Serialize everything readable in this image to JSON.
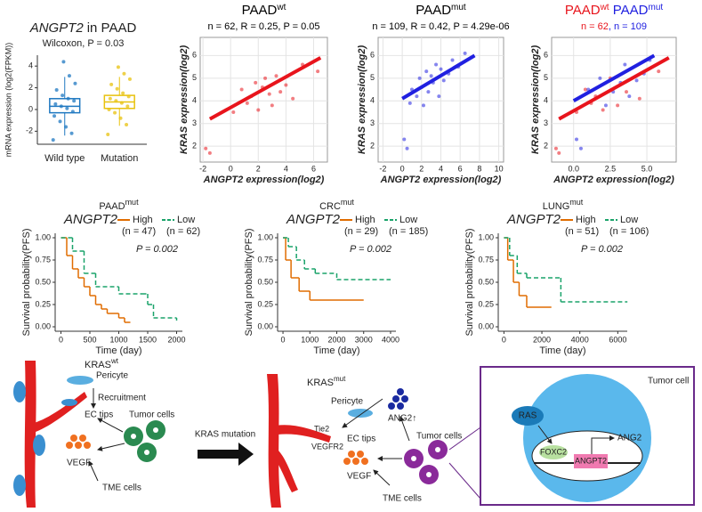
{
  "chart_data": [
    {
      "type": "box",
      "title": "ANGPT2",
      "title_suffix": "in PAAD",
      "subtitle": "Wilcoxon, P = 0.03",
      "y_label": "mRNA expression (log2(FPKM))",
      "categories": [
        "Wild type",
        "Mutation"
      ],
      "ylim": [
        -3.2,
        5
      ],
      "yticks": [
        -2,
        0,
        2,
        4
      ],
      "boxes": [
        {
          "color": "#1f78c1",
          "min": -2.4,
          "q1": -0.3,
          "median": 0.3,
          "q3": 1.0,
          "max": 3.0,
          "points": [
            -2.8,
            -2.2,
            -1.6,
            -1.1,
            -0.6,
            -0.2,
            0.1,
            0.3,
            0.5,
            0.8,
            1.0,
            1.3,
            1.8,
            2.4,
            3.1,
            4.4
          ]
        },
        {
          "color": "#e8c20e",
          "min": -1.5,
          "q1": 0.1,
          "median": 0.7,
          "q3": 1.3,
          "max": 3.0,
          "points": [
            -2.3,
            -1.4,
            -0.8,
            -0.3,
            0.0,
            0.3,
            0.6,
            0.8,
            1.0,
            1.2,
            1.5,
            1.9,
            2.3,
            2.8,
            3.3,
            3.9
          ]
        }
      ]
    },
    {
      "type": "scatter",
      "title_parts": [
        {
          "text": "PAAD",
          "sup": "wt",
          "color": "#000000"
        }
      ],
      "subtitle_parts": [
        {
          "text": "n = 62, R = 0.25, P = 0.05",
          "color": "#000000"
        }
      ],
      "x_label": "ANGPT2 expression(log2)",
      "y_label": "KRAS expression(log2)",
      "grid": true,
      "xlim": [
        -2.2,
        7
      ],
      "xticks": [
        -2,
        0,
        2,
        4,
        6
      ],
      "ylim": [
        1.3,
        6.8
      ],
      "yticks": [
        2,
        3,
        4,
        5,
        6
      ],
      "series": [
        {
          "color": "#e8141c",
          "x": [
            -1.8,
            -1.5,
            0.2,
            0.8,
            1.2,
            1.5,
            1.8,
            2.0,
            2.3,
            2.5,
            2.8,
            3.0,
            3.3,
            3.6,
            4.0,
            4.5,
            5.2,
            6.3
          ],
          "values": [
            1.9,
            1.7,
            3.5,
            4.5,
            3.9,
            4.2,
            4.8,
            3.6,
            4.6,
            5.0,
            4.3,
            3.8,
            5.1,
            4.4,
            4.7,
            4.1,
            5.6,
            5.3
          ],
          "fit": {
            "x": [
              -1.5,
              6.5
            ],
            "values": [
              3.2,
              5.9
            ]
          }
        }
      ]
    },
    {
      "type": "scatter",
      "title_parts": [
        {
          "text": "PAAD",
          "sup": "mut",
          "color": "#000000"
        }
      ],
      "subtitle_parts": [
        {
          "text": "n = 109, R = 0.42, P = 4.29e-06",
          "color": "#000000"
        }
      ],
      "x_label": "ANGPT2 expression(log2)",
      "y_label": "KRAS expression(log2)",
      "grid": true,
      "xlim": [
        -2.5,
        10.5
      ],
      "xticks": [
        -2,
        0,
        2,
        4,
        6,
        8,
        10
      ],
      "ylim": [
        1.3,
        6.8
      ],
      "yticks": [
        2,
        3,
        4,
        5,
        6
      ],
      "series": [
        {
          "color": "#2020e0",
          "x": [
            0.5,
            0.2,
            0.8,
            1.0,
            1.5,
            1.8,
            2.0,
            2.2,
            2.5,
            2.7,
            3.0,
            3.2,
            3.5,
            3.8,
            4.0,
            4.3,
            4.8,
            5.2,
            5.8,
            6.5
          ],
          "values": [
            1.9,
            2.3,
            3.9,
            4.5,
            4.2,
            5.0,
            4.6,
            3.8,
            5.3,
            4.4,
            5.1,
            4.8,
            5.6,
            4.2,
            5.4,
            4.9,
            5.2,
            5.8,
            5.5,
            6.1
          ],
          "fit": {
            "x": [
              0,
              7.5
            ],
            "values": [
              4.1,
              6.0
            ]
          }
        }
      ]
    },
    {
      "type": "scatter",
      "title_parts": [
        {
          "text": "PAAD",
          "sup": "wt",
          "color": "#e8141c"
        },
        {
          "text": " PAAD",
          "sup": "mut",
          "color": "#2020e0"
        }
      ],
      "subtitle_parts": [
        {
          "text": "n = 62",
          "color": "#e8141c"
        },
        {
          "text": ", n = 109",
          "color": "#2020e0"
        }
      ],
      "x_label": "ANGPT2 expression(log2)",
      "y_label": "KRAS expression(log2)",
      "grid": true,
      "xlim": [
        -1.5,
        7
      ],
      "xticks": [
        {
          "value": 0,
          "label": "0.0"
        },
        {
          "value": 2.5,
          "label": "2.5"
        },
        {
          "value": 5,
          "label": "5.0"
        }
      ],
      "ylim": [
        1.3,
        6.8
      ],
      "yticks": [
        2,
        3,
        4,
        5,
        6
      ],
      "series": [
        {
          "color": "#e8141c",
          "x": [
            -1.2,
            -1.0,
            0.2,
            0.8,
            1.2,
            1.5,
            2.0,
            2.5,
            3.0,
            3.6,
            4.5,
            5.8
          ],
          "values": [
            1.9,
            1.7,
            3.5,
            4.5,
            3.9,
            4.2,
            3.6,
            5.0,
            3.8,
            4.4,
            4.1,
            5.3
          ],
          "fit": {
            "x": [
              -1.0,
              6.5
            ],
            "values": [
              3.2,
              5.9
            ]
          }
        },
        {
          "color": "#2020e0",
          "x": [
            0.2,
            1.0,
            1.8,
            2.2,
            2.7,
            3.2,
            3.8,
            4.3,
            4.8,
            5.2,
            0.5,
            3.5
          ],
          "values": [
            2.3,
            4.5,
            5.0,
            3.8,
            4.4,
            4.8,
            4.2,
            4.9,
            5.2,
            5.8,
            1.9,
            5.6
          ],
          "fit": {
            "x": [
              0,
              5.5
            ],
            "values": [
              4.0,
              6.0
            ]
          }
        }
      ]
    },
    {
      "type": "step",
      "title": "PAAD",
      "title_sup": "mut",
      "gene": "ANGPT2",
      "p_text": "P = 0.002",
      "x_label": "Time (day)",
      "y_label": "Survival probability(PFS)",
      "xlim": [
        -100,
        2100
      ],
      "xticks": [
        0,
        500,
        1000,
        1500,
        2000
      ],
      "ylim": [
        -0.05,
        1.05
      ],
      "yticks": [
        {
          "value": 0,
          "label": "0.00"
        },
        {
          "value": 0.25,
          "label": "0.25"
        },
        {
          "value": 0.5,
          "label": "0.50"
        },
        {
          "value": 0.75,
          "label": "0.75"
        },
        {
          "value": 1,
          "label": "1.00"
        }
      ],
      "series": [
        {
          "name": "High",
          "n_label": "(n = 47)",
          "color": "#e06c00",
          "dashed": false,
          "x": [
            0,
            100,
            200,
            300,
            400,
            500,
            600,
            700,
            800,
            1000,
            1100,
            1200
          ],
          "values": [
            1,
            0.8,
            0.65,
            0.55,
            0.45,
            0.35,
            0.25,
            0.2,
            0.15,
            0.1,
            0.05,
            0.05
          ]
        },
        {
          "name": "Low",
          "n_label": "(n = 62)",
          "color": "#1aa36a",
          "dashed": true,
          "x": [
            0,
            200,
            400,
            600,
            1000,
            1400,
            1500,
            1600,
            2000
          ],
          "values": [
            1,
            0.85,
            0.6,
            0.45,
            0.37,
            0.37,
            0.25,
            0.1,
            0.07
          ]
        }
      ]
    },
    {
      "type": "step",
      "title": "CRC",
      "title_sup": "mut",
      "gene": "ANGPT2",
      "p_text": "P = 0.002",
      "x_label": "Time (day)",
      "y_label": "Survival probability(PFS)",
      "xlim": [
        -200,
        4200
      ],
      "xticks": [
        0,
        1000,
        2000,
        3000,
        4000
      ],
      "ylim": [
        -0.05,
        1.05
      ],
      "yticks": [
        {
          "value": 0,
          "label": "0.00"
        },
        {
          "value": 0.25,
          "label": "0.25"
        },
        {
          "value": 0.5,
          "label": "0.50"
        },
        {
          "value": 0.75,
          "label": "0.75"
        },
        {
          "value": 1,
          "label": "1.00"
        }
      ],
      "series": [
        {
          "name": "High",
          "n_label": "(n = 29)",
          "color": "#e06c00",
          "dashed": false,
          "x": [
            0,
            100,
            300,
            600,
            1000,
            3000
          ],
          "values": [
            1,
            0.75,
            0.55,
            0.4,
            0.3,
            0.3
          ]
        },
        {
          "name": "Low",
          "n_label": "(n = 185)",
          "color": "#1aa36a",
          "dashed": true,
          "x": [
            0,
            200,
            500,
            800,
            1200,
            2000,
            4000
          ],
          "values": [
            1,
            0.9,
            0.75,
            0.65,
            0.6,
            0.53,
            0.53
          ]
        }
      ]
    },
    {
      "type": "step",
      "title": "LUNG",
      "title_sup": "mut",
      "gene": "ANGPT2",
      "p_text": "P = 0.002",
      "x_label": "Time (day)",
      "y_label": "Survival probability(PFS)",
      "xlim": [
        -300,
        6500
      ],
      "xticks": [
        0,
        2000,
        4000,
        6000
      ],
      "ylim": [
        -0.05,
        1.05
      ],
      "yticks": [
        {
          "value": 0,
          "label": "0.00"
        },
        {
          "value": 0.25,
          "label": "0.25"
        },
        {
          "value": 0.5,
          "label": "0.50"
        },
        {
          "value": 0.75,
          "label": "0.75"
        },
        {
          "value": 1,
          "label": "1.00"
        }
      ],
      "series": [
        {
          "name": "High",
          "n_label": "(n = 51)",
          "color": "#e06c00",
          "dashed": false,
          "x": [
            0,
            200,
            500,
            800,
            1200,
            2500
          ],
          "values": [
            1,
            0.75,
            0.5,
            0.35,
            0.22,
            0.22
          ]
        },
        {
          "name": "Low",
          "n_label": "(n = 106)",
          "color": "#1aa36a",
          "dashed": true,
          "x": [
            0,
            300,
            700,
            1200,
            3000,
            6500
          ],
          "values": [
            1,
            0.8,
            0.6,
            0.55,
            0.28,
            0.28
          ]
        }
      ]
    }
  ],
  "diagram": {
    "wt_title": "KRAS",
    "wt_sup": "wt",
    "pericyte": "Pericyte",
    "recruitment": "Recruitment",
    "ec_tips": "EC tips",
    "tumor_cells": "Tumor cells",
    "vegf": "VEGF",
    "tme_cells": "TME cells",
    "arrow_label": "KRAS mutation",
    "mut_title": "KRAS",
    "mut_sup": "mut",
    "ang2_up": "ANG2↑",
    "tie2": "Tie2",
    "vegfr2": "VEGFR2",
    "tumor_cell": "Tumor cell",
    "ras": "RAS",
    "foxc2": "FOXC2",
    "angpt2_gene": "ANGPT2",
    "ang2": "ANG2"
  }
}
